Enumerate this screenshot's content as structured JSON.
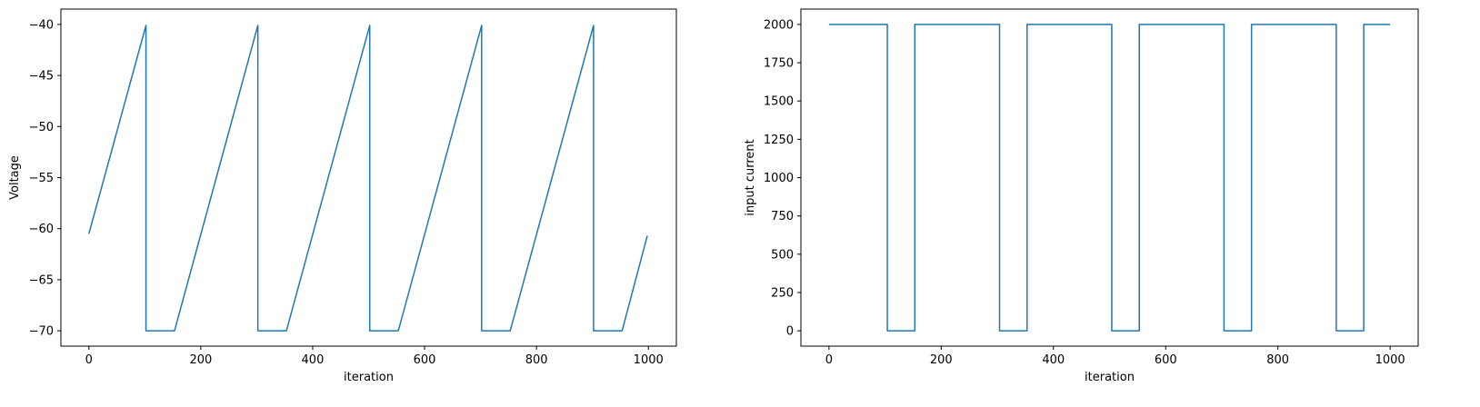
{
  "chart_data": [
    {
      "type": "line",
      "xlabel": "iteration",
      "ylabel": "Voltage",
      "xlim": [
        -50,
        1050
      ],
      "ylim": [
        -71.5,
        -38.5
      ],
      "xticks": [
        0,
        200,
        400,
        600,
        800,
        1000
      ],
      "yticks": [
        -70,
        -65,
        -60,
        -55,
        -50,
        -45,
        -40
      ],
      "ytick_labels": [
        "−70",
        "−65",
        "−60",
        "−55",
        "−50",
        "−45",
        "−40"
      ],
      "grid": false,
      "color": "#1f77b4",
      "series": [
        {
          "x": [
            0,
            102,
            102,
            153,
            302,
            302,
            353,
            502,
            502,
            553,
            702,
            702,
            753,
            902,
            902,
            953,
            998
          ],
          "y": [
            -60.5,
            -40.1,
            -70,
            -70,
            -40.1,
            -70,
            -70,
            -40.1,
            -70,
            -70,
            -40.1,
            -70,
            -70,
            -40.1,
            -70,
            -70,
            -60.7
          ]
        }
      ]
    },
    {
      "type": "line",
      "xlabel": "iteration",
      "ylabel": "input current",
      "xlim": [
        -50,
        1050
      ],
      "ylim": [
        -100,
        2100
      ],
      "xticks": [
        0,
        200,
        400,
        600,
        800,
        1000
      ],
      "yticks": [
        0,
        250,
        500,
        750,
        1000,
        1250,
        1500,
        1750,
        2000
      ],
      "ytick_labels": [
        "0",
        "250",
        "500",
        "750",
        "1000",
        "1250",
        "1500",
        "1750",
        "2000"
      ],
      "grid": false,
      "color": "#1f77b4",
      "series": [
        {
          "x": [
            0,
            104,
            104,
            153,
            153,
            304,
            304,
            353,
            353,
            504,
            504,
            553,
            553,
            704,
            704,
            753,
            753,
            904,
            904,
            953,
            953,
            1000
          ],
          "y": [
            2000,
            2000,
            0,
            0,
            2000,
            2000,
            0,
            0,
            2000,
            2000,
            0,
            0,
            2000,
            2000,
            0,
            0,
            2000,
            2000,
            0,
            0,
            2000,
            2000
          ]
        }
      ]
    }
  ]
}
